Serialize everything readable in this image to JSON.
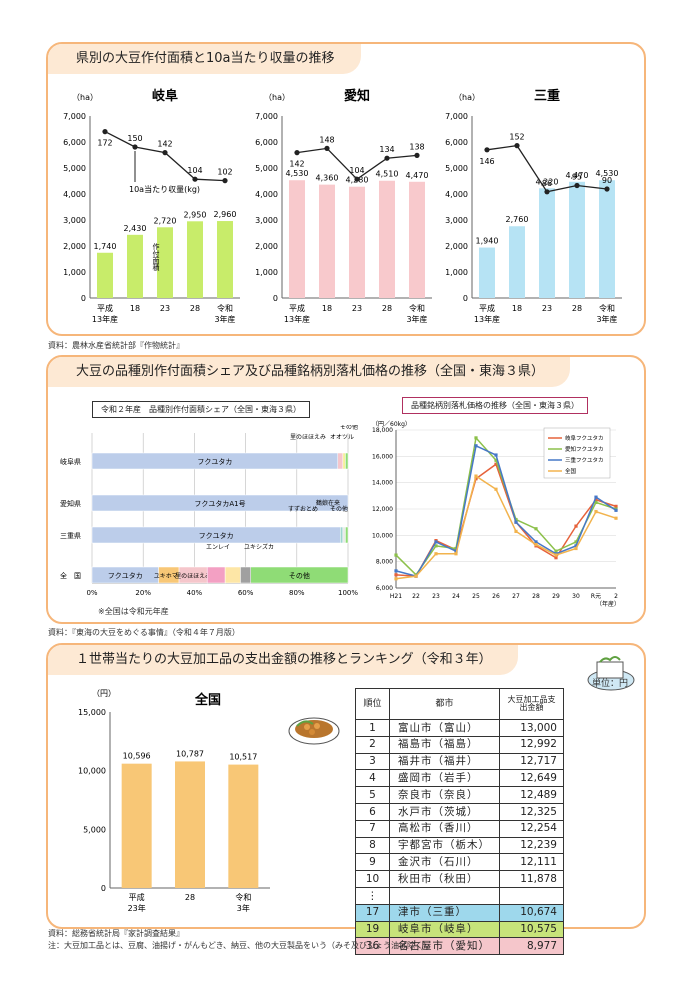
{
  "section1": {
    "title": "県別の大豆作付面積と10a当たり収量の推移",
    "source": "資料：農林水産省統計部『作物統計』",
    "unit": "（ha）",
    "yticks": [
      "0",
      "1,000",
      "2,000",
      "3,000",
      "4,000",
      "5,000",
      "6,000",
      "7,000"
    ],
    "xlabels": [
      [
        "平成",
        "13年産"
      ],
      [
        "18",
        ""
      ],
      [
        "23",
        ""
      ],
      [
        "28",
        ""
      ],
      [
        "令和",
        "3年産"
      ]
    ],
    "area_label": "作付面積",
    "yield_label": "10a当たり収量(kg)"
  },
  "section2": {
    "title": "大豆の品種別作付面積シェア及び品種銘柄別落札価格の推移（全国・東海３県）",
    "source": "資料：『東海の大豆をめぐる事情』（令和４年７月版）",
    "share_title": "令和２年産　品種別作付面積シェア（全国・東海３県）",
    "share_note": "※全国は令和元年産",
    "price_title": "品種銘柄別落札価格の推移（全国・東海３県）",
    "price_unit": "（円／60kg）",
    "price_xunit": "（年産）"
  },
  "section3": {
    "title": "１世帯当たりの大豆加工品の支出金額の推移とランキング（令和３年）",
    "unit_note": "単位：円",
    "chart_unit": "（円）",
    "source": "資料：総務省統計局『家計調査結果』",
    "note": "注：大豆加工品とは、豆腐、油揚げ・がんもどき、納豆、他の大豆製品をいう（みそ及びしょう油は除く）。",
    "table_headers": [
      "順位",
      "都市",
      "大豆加工品支出金額"
    ],
    "ellipsis": "⋮",
    "ranking": [
      {
        "rank": "1",
        "city": "富山市（富山）",
        "amount": "13,000"
      },
      {
        "rank": "2",
        "city": "福島市（福島）",
        "amount": "12,992"
      },
      {
        "rank": "3",
        "city": "福井市（福井）",
        "amount": "12,717"
      },
      {
        "rank": "4",
        "city": "盛岡市（岩手）",
        "amount": "12,649"
      },
      {
        "rank": "5",
        "city": "奈良市（奈良）",
        "amount": "12,489"
      },
      {
        "rank": "6",
        "city": "水戸市（茨城）",
        "amount": "12,325"
      },
      {
        "rank": "7",
        "city": "高松市（香川）",
        "amount": "12,254"
      },
      {
        "rank": "8",
        "city": "宇都宮市（栃木）",
        "amount": "12,239"
      },
      {
        "rank": "9",
        "city": "金沢市（石川）",
        "amount": "12,111"
      },
      {
        "rank": "10",
        "city": "秋田市（秋田）",
        "amount": "11,878"
      }
    ],
    "highlight": [
      {
        "rank": "17",
        "city": "津市（三重）",
        "amount": "10,674",
        "color": "#9ed8ec"
      },
      {
        "rank": "19",
        "city": "岐阜市（岐阜）",
        "amount": "10,575",
        "color": "#c7e37a"
      },
      {
        "rank": "36",
        "city": "名古屋市（愛知）",
        "amount": "8,977",
        "color": "#f5c6cb"
      }
    ]
  },
  "chart_data": [
    {
      "type": "bar",
      "title": "岐阜",
      "categories": [
        "平成13年産",
        "18",
        "23",
        "28",
        "令和3年産"
      ],
      "values": [
        1740,
        2430,
        2720,
        2950,
        2960
      ],
      "labels": [
        "1,740",
        "2,430",
        "2,720",
        "2,950",
        "2,960"
      ],
      "line": [
        172,
        150,
        142,
        104,
        102
      ],
      "ylim": [
        0,
        7000
      ],
      "color": "#c8ec6a"
    },
    {
      "type": "bar",
      "title": "愛知",
      "categories": [
        "平成13年産",
        "18",
        "23",
        "28",
        "令和3年産"
      ],
      "values": [
        4530,
        4360,
        4280,
        4510,
        4470
      ],
      "labels": [
        "4,530",
        "4,360",
        "4,280",
        "4,510",
        "4,470"
      ],
      "line": [
        142,
        148,
        104,
        134,
        138
      ],
      "ylim": [
        0,
        7000
      ],
      "color": "#f8c9cc"
    },
    {
      "type": "bar",
      "title": "三重",
      "categories": [
        "平成13年産",
        "18",
        "23",
        "28",
        "令和3年産"
      ],
      "values": [
        1940,
        2760,
        4220,
        4470,
        4530
      ],
      "labels": [
        "1,940",
        "2,760",
        "4,220",
        "4,470",
        "4,530"
      ],
      "line": [
        146,
        152,
        86,
        95,
        90
      ],
      "ylim": [
        0,
        7000
      ],
      "color": "#b6e3f4"
    },
    {
      "type": "bar",
      "title": "令和２年産　品種別作付面積シェア（全国・東海３県）",
      "orientation": "horizontal",
      "stacked": true,
      "categories": [
        "岐阜県",
        "愛知県",
        "三重県",
        "全　国"
      ],
      "series": [
        {
          "name": "フクユタカ",
          "values": [
            96,
            0,
            97,
            26
          ]
        },
        {
          "name": "フクユタカA1号",
          "values": [
            0,
            100,
            0,
            0
          ]
        },
        {
          "name": "ユキホマレ",
          "values": [
            0,
            0,
            0,
            8
          ]
        },
        {
          "name": "里のほほえみ",
          "values": [
            2,
            0,
            0,
            11
          ]
        },
        {
          "name": "リュウホウ",
          "values": [
            0,
            0,
            0,
            7
          ]
        },
        {
          "name": "エンレイ",
          "values": [
            0,
            0,
            0,
            6
          ]
        },
        {
          "name": "すずおとめ",
          "values": [
            0,
            0,
            1,
            0
          ]
        },
        {
          "name": "オオツル",
          "values": [
            1,
            0,
            0,
            0
          ]
        },
        {
          "name": "鶴娘在来",
          "values": [
            0,
            0,
            1,
            0
          ]
        },
        {
          "name": "ユキシズカ",
          "values": [
            0,
            0,
            0,
            4
          ]
        },
        {
          "name": "その他",
          "values": [
            1,
            0,
            1,
            38
          ]
        }
      ],
      "xlim": [
        0,
        100
      ],
      "xticks": [
        "0%",
        "20%",
        "40%",
        "60%",
        "80%",
        "100%"
      ]
    },
    {
      "type": "line",
      "title": "品種銘柄別落札価格の推移（全国・東海３県）",
      "x": [
        "H21",
        "22",
        "23",
        "24",
        "25",
        "26",
        "27",
        "28",
        "29",
        "30",
        "R元",
        "2"
      ],
      "series": [
        {
          "name": "岐阜フクユタカ",
          "color": "#e6623b",
          "values": [
            7000,
            6900,
            9600,
            8900,
            14300,
            15400,
            11000,
            9200,
            8300,
            10700,
            12700,
            12200
          ]
        },
        {
          "name": "愛知フクユタカ",
          "color": "#8cc04a",
          "values": [
            8500,
            7000,
            9200,
            9000,
            17400,
            15700,
            11200,
            10500,
            8800,
            9500,
            12500,
            12000
          ]
        },
        {
          "name": "三重フクユタカ",
          "color": "#4678c7",
          "values": [
            7300,
            6900,
            9500,
            8800,
            16800,
            16100,
            11000,
            9500,
            8600,
            9200,
            12900,
            11900
          ]
        },
        {
          "name": "全国",
          "color": "#f2b34d",
          "values": [
            6700,
            6900,
            8600,
            8600,
            14500,
            13500,
            10300,
            9300,
            8500,
            9000,
            11800,
            11300
          ]
        }
      ],
      "yticks": [
        "6,000",
        "8,000",
        "10,000",
        "12,000",
        "14,000",
        "16,000",
        "18,000"
      ],
      "ylim": [
        6000,
        18000
      ]
    },
    {
      "type": "bar",
      "title": "全国",
      "categories": [
        "平成23年",
        "28",
        "令和3年"
      ],
      "values": [
        10596,
        10787,
        10517
      ],
      "labels": [
        "10,596",
        "10,787",
        "10,517"
      ],
      "yticks": [
        "0",
        "5,000",
        "10,000",
        "15,000"
      ],
      "ylim": [
        0,
        15000
      ],
      "color": "#f8c776"
    }
  ]
}
